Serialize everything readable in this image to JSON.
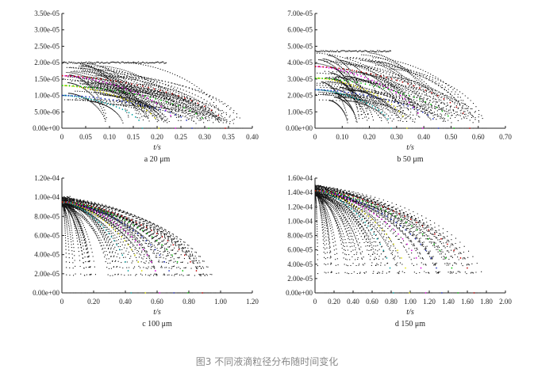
{
  "caption": "图3 不同液滴粒径分布随时间变化",
  "chart_data": [
    {
      "type": "scatter",
      "subtitle": "a 20 μm",
      "xlabel": "t/s",
      "xlim": [
        0,
        0.4
      ],
      "ylim": [
        0,
        3.5e-05
      ],
      "xticks": [
        "0",
        "0.05",
        "0.10",
        "0.15",
        "0.20",
        "0.25",
        "0.30",
        "0.35",
        "0.40"
      ],
      "yticks": [
        "0.00e+00",
        "5.00e-06",
        "1.00e-05",
        "1.50e-05",
        "2.00e-05",
        "2.50e-05",
        "3.00e-05",
        "3.50e-05"
      ],
      "initial_diameter": 2e-05,
      "max_time": 0.38,
      "plateau_end": 0.22
    },
    {
      "type": "scatter",
      "subtitle": "b 50 μm",
      "xlabel": "t/s",
      "xlim": [
        0,
        0.7
      ],
      "ylim": [
        0,
        7e-05
      ],
      "xticks": [
        "0",
        "0.10",
        "0.20",
        "0.30",
        "0.40",
        "0.50",
        "0.60",
        "0.70"
      ],
      "yticks": [
        "0.00e+00",
        "1.00e-05",
        "2.00e-05",
        "3.00e-05",
        "4.00e-05",
        "5.00e-05",
        "6.00e-05",
        "7.00e-05"
      ],
      "initial_diameter": 4.7e-05,
      "max_time": 0.63,
      "plateau_end": 0.28
    },
    {
      "type": "scatter",
      "subtitle": "c 100 μm",
      "xlabel": "t/s",
      "xlim": [
        0,
        1.2
      ],
      "ylim": [
        0,
        0.00012
      ],
      "xticks": [
        "0",
        "0.20",
        "0.40",
        "0.60",
        "0.80",
        "1.00",
        "1.20"
      ],
      "yticks": [
        "0.00e+00",
        "2.00e-05",
        "4.00e-05",
        "6.00e-05",
        "8.00e-05",
        "1.00e-04",
        "1.20e-04"
      ],
      "initial_diameter": 0.0001,
      "max_time": 0.98,
      "plateau_end": 0.05
    },
    {
      "type": "scatter",
      "subtitle": "d 150 μm",
      "xlabel": "t/s",
      "xlim": [
        0,
        2.0
      ],
      "ylim": [
        0,
        0.00016
      ],
      "xticks": [
        "0",
        "0.20",
        "0.40",
        "0.60",
        "0.80",
        "1.00",
        "1.20",
        "1.40",
        "1.60",
        "1.80",
        "2.00"
      ],
      "yticks": [
        "0.00e+00",
        "2.00e-05",
        "4.00e-05",
        "6.00e-05",
        "8.00e-05",
        "1.00e-04",
        "1.20e-04",
        "1.40e-04",
        "1.60e-04"
      ],
      "initial_diameter": 0.00015,
      "max_time": 1.85,
      "plateau_end": 0.05
    }
  ],
  "colors": {
    "points": "#111111",
    "highlight_series": [
      "#00a0a0",
      "#e0e000",
      "#e000e0",
      "#2030c0",
      "#00c000",
      "#c00000"
    ]
  }
}
